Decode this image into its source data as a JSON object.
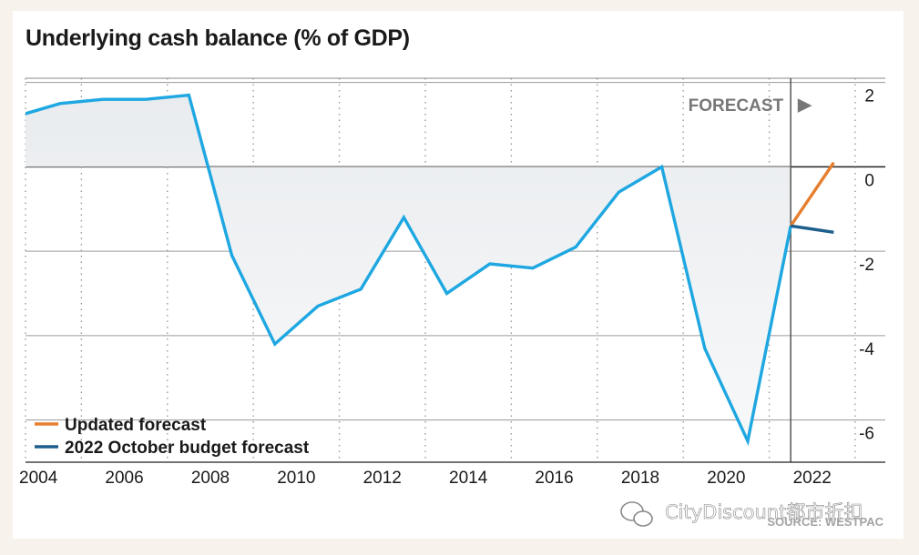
{
  "chart_data": {
    "type": "line",
    "title": "Underlying cash balance (% of GDP)",
    "xlabel": "",
    "ylabel": "",
    "xlim": [
      2003.7,
      2023.7
    ],
    "ylim": [
      -7.0,
      2.1
    ],
    "y_ticks": [
      2,
      0,
      -2,
      -4,
      -6
    ],
    "y_tick_labels": [
      "2",
      "0",
      "-2",
      "-4",
      "-6"
    ],
    "x_ticks": [
      2004,
      2006,
      2008,
      2010,
      2012,
      2014,
      2016,
      2018,
      2020,
      2022
    ],
    "x_tick_labels": [
      "2004",
      "2006",
      "2008",
      "2010",
      "2012",
      "2014",
      "2016",
      "2018",
      "2020",
      "2022"
    ],
    "grid": "horizontal solid, vertical dotted",
    "legend_position": "bottom-left",
    "forecast_start": 2021.5,
    "forecast_label": "FORECAST",
    "forecast_arrow": "▶",
    "source": "SOURCE: WESTPAC",
    "series": [
      {
        "name": "",
        "color": "#1ea7e1",
        "x": [
          2003.5,
          2004.5,
          2005.5,
          2006.5,
          2007.5,
          2008.5,
          2009.5,
          2010.5,
          2011.5,
          2012.5,
          2013.5,
          2014.5,
          2015.5,
          2016.5,
          2017.5,
          2018.5,
          2019.5,
          2020.5,
          2021.5
        ],
        "y": [
          1.2,
          1.5,
          1.6,
          1.6,
          1.7,
          -2.1,
          -4.2,
          -3.3,
          -2.9,
          -1.2,
          -3.0,
          -2.3,
          -2.4,
          -1.9,
          -0.6,
          0.0,
          -4.3,
          -6.5,
          -1.4
        ]
      },
      {
        "name": "Updated forecast",
        "color": "#e67e2e",
        "x": [
          2021.5,
          2022.5
        ],
        "y": [
          -1.4,
          0.1
        ]
      },
      {
        "name": "2022 October budget forecast",
        "color": "#1d5e8c",
        "x": [
          2021.5,
          2022.5
        ],
        "y": [
          -1.4,
          -1.55
        ]
      }
    ]
  },
  "watermark": {
    "text": "CityDiscount都市折扣",
    "icon": "wechat-icon"
  }
}
